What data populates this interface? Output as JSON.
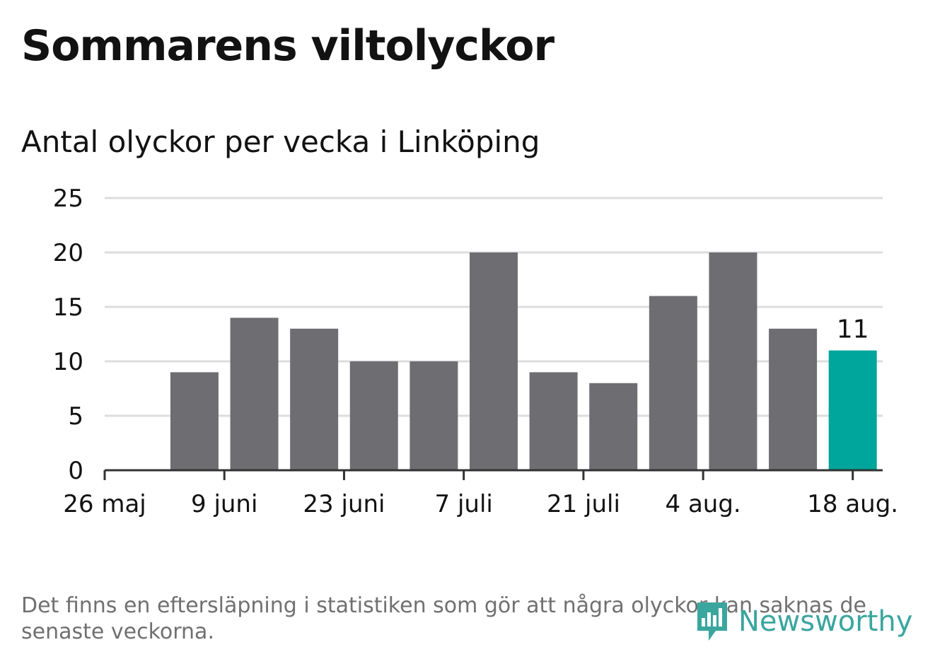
{
  "title": "Sommarens viltolyckor",
  "subtitle": "Antal olyckor per vecka i Linköping",
  "footnote": "Det finns en eftersläpning i statistiken som gör att några olyckor kan saknas de senaste veckorna.",
  "logo": {
    "text": "Newsworthy",
    "icon": "newsworthy-logo-icon",
    "color": "#3aa69e"
  },
  "colors": {
    "bar": "#6e6d72",
    "highlight": "#00a59b",
    "grid": "#dddddd",
    "axis": "#333333",
    "text": "#121212",
    "footnote": "#707070"
  },
  "chart_data": {
    "type": "bar",
    "x": [
      "2024-05-26",
      "2024-06-02",
      "2024-06-09",
      "2024-06-16",
      "2024-06-23",
      "2024-06-30",
      "2024-07-07",
      "2024-07-14",
      "2024-07-21",
      "2024-07-28",
      "2024-08-04",
      "2024-08-11",
      "2024-08-18"
    ],
    "values": [
      null,
      9,
      14,
      13,
      10,
      10,
      20,
      9,
      8,
      16,
      20,
      13,
      11
    ],
    "highlight_index": 12,
    "data_labels": [
      {
        "index": 12,
        "text": "11"
      }
    ],
    "xticks": [
      {
        "index": 0,
        "label": "26 maj"
      },
      {
        "index": 2,
        "label": "9 juni"
      },
      {
        "index": 4,
        "label": "23 juni"
      },
      {
        "index": 6,
        "label": "7 juli"
      },
      {
        "index": 8,
        "label": "21 juli"
      },
      {
        "index": 10,
        "label": "4 aug."
      },
      {
        "index": 12,
        "label": "18 aug."
      }
    ],
    "yticks": [
      0,
      5,
      10,
      15,
      20,
      25
    ],
    "ylim": [
      0,
      25
    ],
    "grid": true,
    "legend": "none",
    "xlabel": "",
    "ylabel": ""
  }
}
